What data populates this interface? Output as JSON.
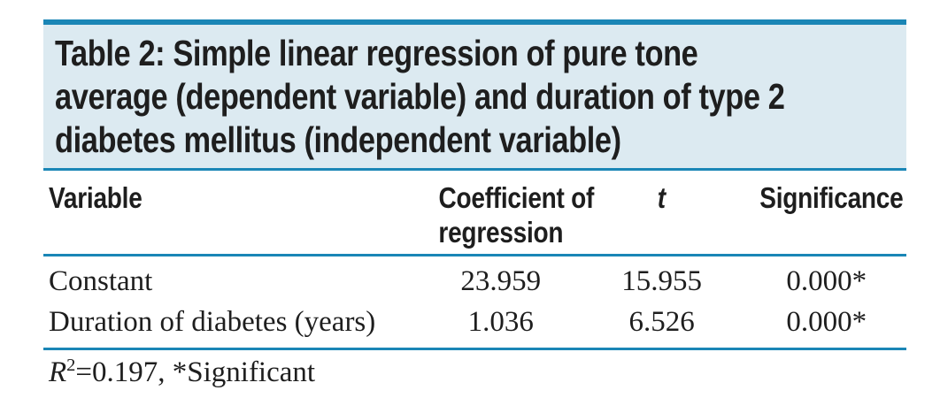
{
  "table": {
    "title_lines": [
      "Table 2: Simple linear regression of pure tone",
      "average (dependent variable) and duration of type 2",
      "diabetes mellitus (independent variable)"
    ],
    "columns": {
      "variable": "Variable",
      "coefficient_line1": "Coefficient of",
      "coefficient_line2": "regression",
      "t": "t",
      "significance": "Significance"
    },
    "rows": [
      {
        "variable": "Constant",
        "coefficient": "23.959",
        "t": "15.955",
        "significance": "0.000*"
      },
      {
        "variable": "Duration of diabetes (years)",
        "coefficient": "1.036",
        "t": "6.526",
        "significance": "0.000*"
      }
    ],
    "footnote": {
      "r_symbol": "R",
      "r_exponent": "2",
      "rest": "=0.197, *Significant"
    }
  },
  "colors": {
    "accent_rule": "#1a86b6",
    "title_background": "#dceaf1",
    "text": "#1e1e1e"
  }
}
